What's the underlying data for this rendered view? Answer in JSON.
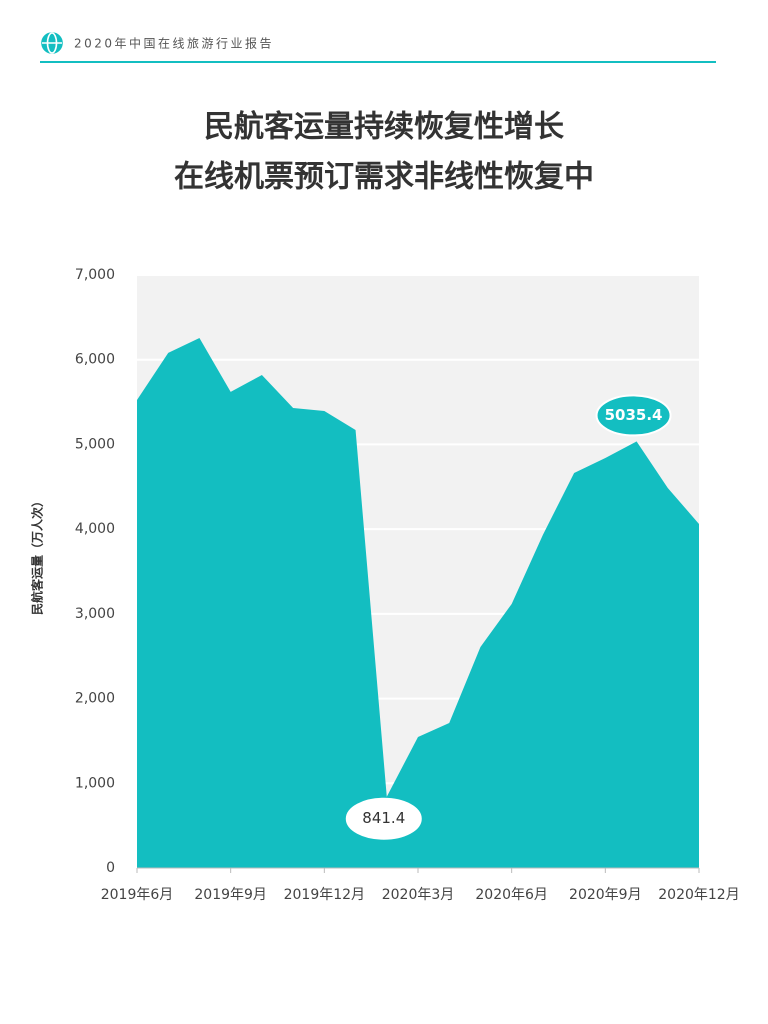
{
  "header": {
    "title": "2020年中国在线旅游行业报告"
  },
  "chart_data": {
    "type": "area",
    "title": [
      "民航客运量持续恢复性增长",
      "在线机票预订需求非线性恢复中"
    ],
    "y_label": "民航客运量（万人次）",
    "categories": [
      "2019年6月",
      null,
      null,
      "2019年9月",
      null,
      null,
      "2019年12月",
      null,
      null,
      "2020年3月",
      null,
      null,
      "2020年6月",
      null,
      null,
      "2020年9月",
      null,
      null,
      "2020年12月"
    ],
    "values": [
      5525,
      6080,
      6257,
      5620,
      5820,
      5430,
      5395,
      5171,
      841.4,
      1547,
      1712,
      2609,
      3117,
      3932,
      4663,
      4840,
      5035.4,
      4486,
      4061
    ],
    "value_labels": [
      null,
      null,
      null,
      null,
      null,
      null,
      null,
      null,
      "841.4",
      null,
      null,
      null,
      null,
      null,
      null,
      null,
      "5035.4",
      null,
      null
    ],
    "color": "#13bec1",
    "ylim": [
      0,
      7000
    ],
    "yticks": [
      0,
      {
        "value": 1000,
        "label": "1,000"
      },
      {
        "value": 2000,
        "label": "2,000"
      },
      {
        "value": 3000,
        "label": "3,000"
      },
      {
        "value": 4000,
        "label": "4,000"
      },
      {
        "value": 5000,
        "label": "5,000"
      },
      {
        "value": 6000,
        "label": "6,000"
      },
      {
        "value": 7000,
        "label": "7,000"
      }
    ],
    "grid": true
  }
}
